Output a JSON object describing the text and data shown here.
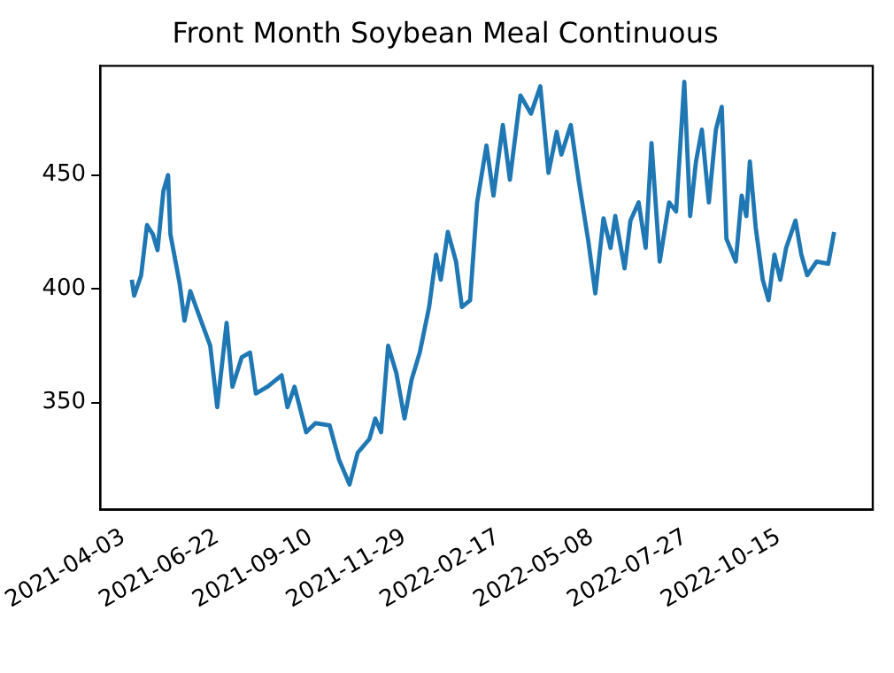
{
  "chart_data": {
    "type": "line",
    "title": "Front Month Soybean Meal Continuous",
    "x": [
      "2021-04-10",
      "2021-04-12",
      "2021-04-18",
      "2021-04-23",
      "2021-04-28",
      "2021-05-02",
      "2021-05-07",
      "2021-05-11",
      "2021-05-13",
      "2021-05-21",
      "2021-05-25",
      "2021-05-30",
      "2021-06-06",
      "2021-06-16",
      "2021-06-22",
      "2021-06-30",
      "2021-07-05",
      "2021-07-13",
      "2021-07-20",
      "2021-07-25",
      "2021-08-04",
      "2021-08-16",
      "2021-08-21",
      "2021-08-27",
      "2021-09-06",
      "2021-09-14",
      "2021-09-26",
      "2021-10-04",
      "2021-10-13",
      "2021-10-20",
      "2021-10-30",
      "2021-11-04",
      "2021-11-09",
      "2021-11-15",
      "2021-11-22",
      "2021-11-29",
      "2021-12-05",
      "2021-12-12",
      "2021-12-20",
      "2021-12-26",
      "2021-12-30",
      "2022-01-05",
      "2022-01-12",
      "2022-01-17",
      "2022-01-24",
      "2022-01-30",
      "2022-02-07",
      "2022-02-13",
      "2022-02-21",
      "2022-02-27",
      "2022-03-08",
      "2022-03-17",
      "2022-03-25",
      "2022-04-01",
      "2022-04-08",
      "2022-04-12",
      "2022-04-20",
      "2022-04-27",
      "2022-05-05",
      "2022-05-11",
      "2022-05-18",
      "2022-05-24",
      "2022-05-28",
      "2022-06-05",
      "2022-06-10",
      "2022-06-17",
      "2022-06-23",
      "2022-06-28",
      "2022-07-05",
      "2022-07-13",
      "2022-07-19",
      "2022-07-26",
      "2022-07-31",
      "2022-08-05",
      "2022-08-10",
      "2022-08-16",
      "2022-08-22",
      "2022-08-27",
      "2022-08-31",
      "2022-09-08",
      "2022-09-13",
      "2022-09-17",
      "2022-09-20",
      "2022-09-25",
      "2022-10-01",
      "2022-10-06",
      "2022-10-11",
      "2022-10-16",
      "2022-10-21",
      "2022-10-29",
      "2022-11-03",
      "2022-11-08",
      "2022-11-16",
      "2022-11-26",
      "2022-12-01"
    ],
    "series": [
      {
        "color": "#1f77b4",
        "values": [
          404,
          397,
          406,
          428,
          424,
          417,
          443,
          450,
          424,
          402,
          386,
          399,
          389,
          375,
          348,
          385,
          357,
          370,
          372,
          354,
          357,
          362,
          348,
          357,
          337,
          341,
          340,
          325,
          314,
          328,
          334,
          343,
          337,
          375,
          363,
          343,
          360,
          372,
          392,
          415,
          404,
          425,
          412,
          392,
          395,
          438,
          463,
          441,
          472,
          448,
          485,
          477,
          489,
          451,
          469,
          459,
          472,
          447,
          421,
          398,
          431,
          418,
          432,
          409,
          430,
          438,
          418,
          464,
          412,
          438,
          434,
          491,
          432,
          456,
          470,
          438,
          470,
          480,
          422,
          412,
          441,
          432,
          456,
          427,
          404,
          395,
          415,
          404,
          418,
          430,
          415,
          406,
          412,
          411,
          425
        ]
      }
    ],
    "xlim": [
      "2021-03-14",
      "2023-01-03"
    ],
    "xticks": [
      "2021-04-03",
      "2021-06-22",
      "2021-09-10",
      "2021-11-29",
      "2022-02-17",
      "2022-05-08",
      "2022-07-27",
      "2022-10-15"
    ],
    "ylim": [
      303,
      498
    ],
    "yticks": [
      350,
      400,
      450
    ],
    "grid": false,
    "legend": false,
    "marker": "none",
    "line_style": "solid"
  }
}
